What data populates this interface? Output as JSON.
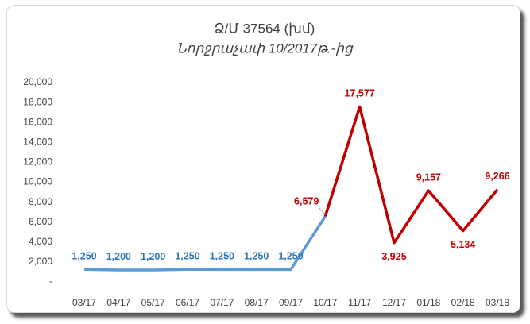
{
  "chart_data": {
    "type": "line",
    "title": "Ձ/Մ 37564 (խմ)",
    "subtitle": "Նորջրաչափ 10/2017թ.-ից",
    "categories": [
      "03/17",
      "04/17",
      "05/17",
      "06/17",
      "07/17",
      "08/17",
      "09/17",
      "10/17",
      "11/17",
      "12/17",
      "01/18",
      "02/18",
      "03/18"
    ],
    "series": [
      {
        "color": "#5b9bd5",
        "label_color": "#2e75b6",
        "values": [
          1250,
          1200,
          1200,
          1250,
          1250,
          1250,
          1250,
          6579,
          null,
          null,
          null,
          null,
          null
        ],
        "value_labels": [
          "1,250",
          "1,200",
          "1,200",
          "1,250",
          "1,250",
          "1,250",
          "1,250",
          null,
          null,
          null,
          null,
          null,
          null
        ]
      },
      {
        "color": "#c00000",
        "label_color": "#c00000",
        "values": [
          null,
          null,
          null,
          null,
          null,
          null,
          null,
          6579,
          17577,
          3925,
          9157,
          5134,
          9266
        ],
        "value_labels": [
          null,
          null,
          null,
          null,
          null,
          null,
          null,
          "6,579",
          "17,577",
          "3,925",
          "9,157",
          "5,134",
          "9,266"
        ]
      }
    ],
    "ylim": [
      0,
      20000
    ],
    "yticks": [
      {
        "value": 0,
        "label": "-"
      },
      {
        "value": 2000,
        "label": "2,000"
      },
      {
        "value": 4000,
        "label": "4,000"
      },
      {
        "value": 6000,
        "label": "6,000"
      },
      {
        "value": 8000,
        "label": "8,000"
      },
      {
        "value": 10000,
        "label": "10,000"
      },
      {
        "value": 12000,
        "label": "12,000"
      },
      {
        "value": 14000,
        "label": "14,000"
      },
      {
        "value": 16000,
        "label": "16,000"
      },
      {
        "value": 18000,
        "label": "18,000"
      },
      {
        "value": 20000,
        "label": "20,000"
      }
    ],
    "grid": false
  }
}
